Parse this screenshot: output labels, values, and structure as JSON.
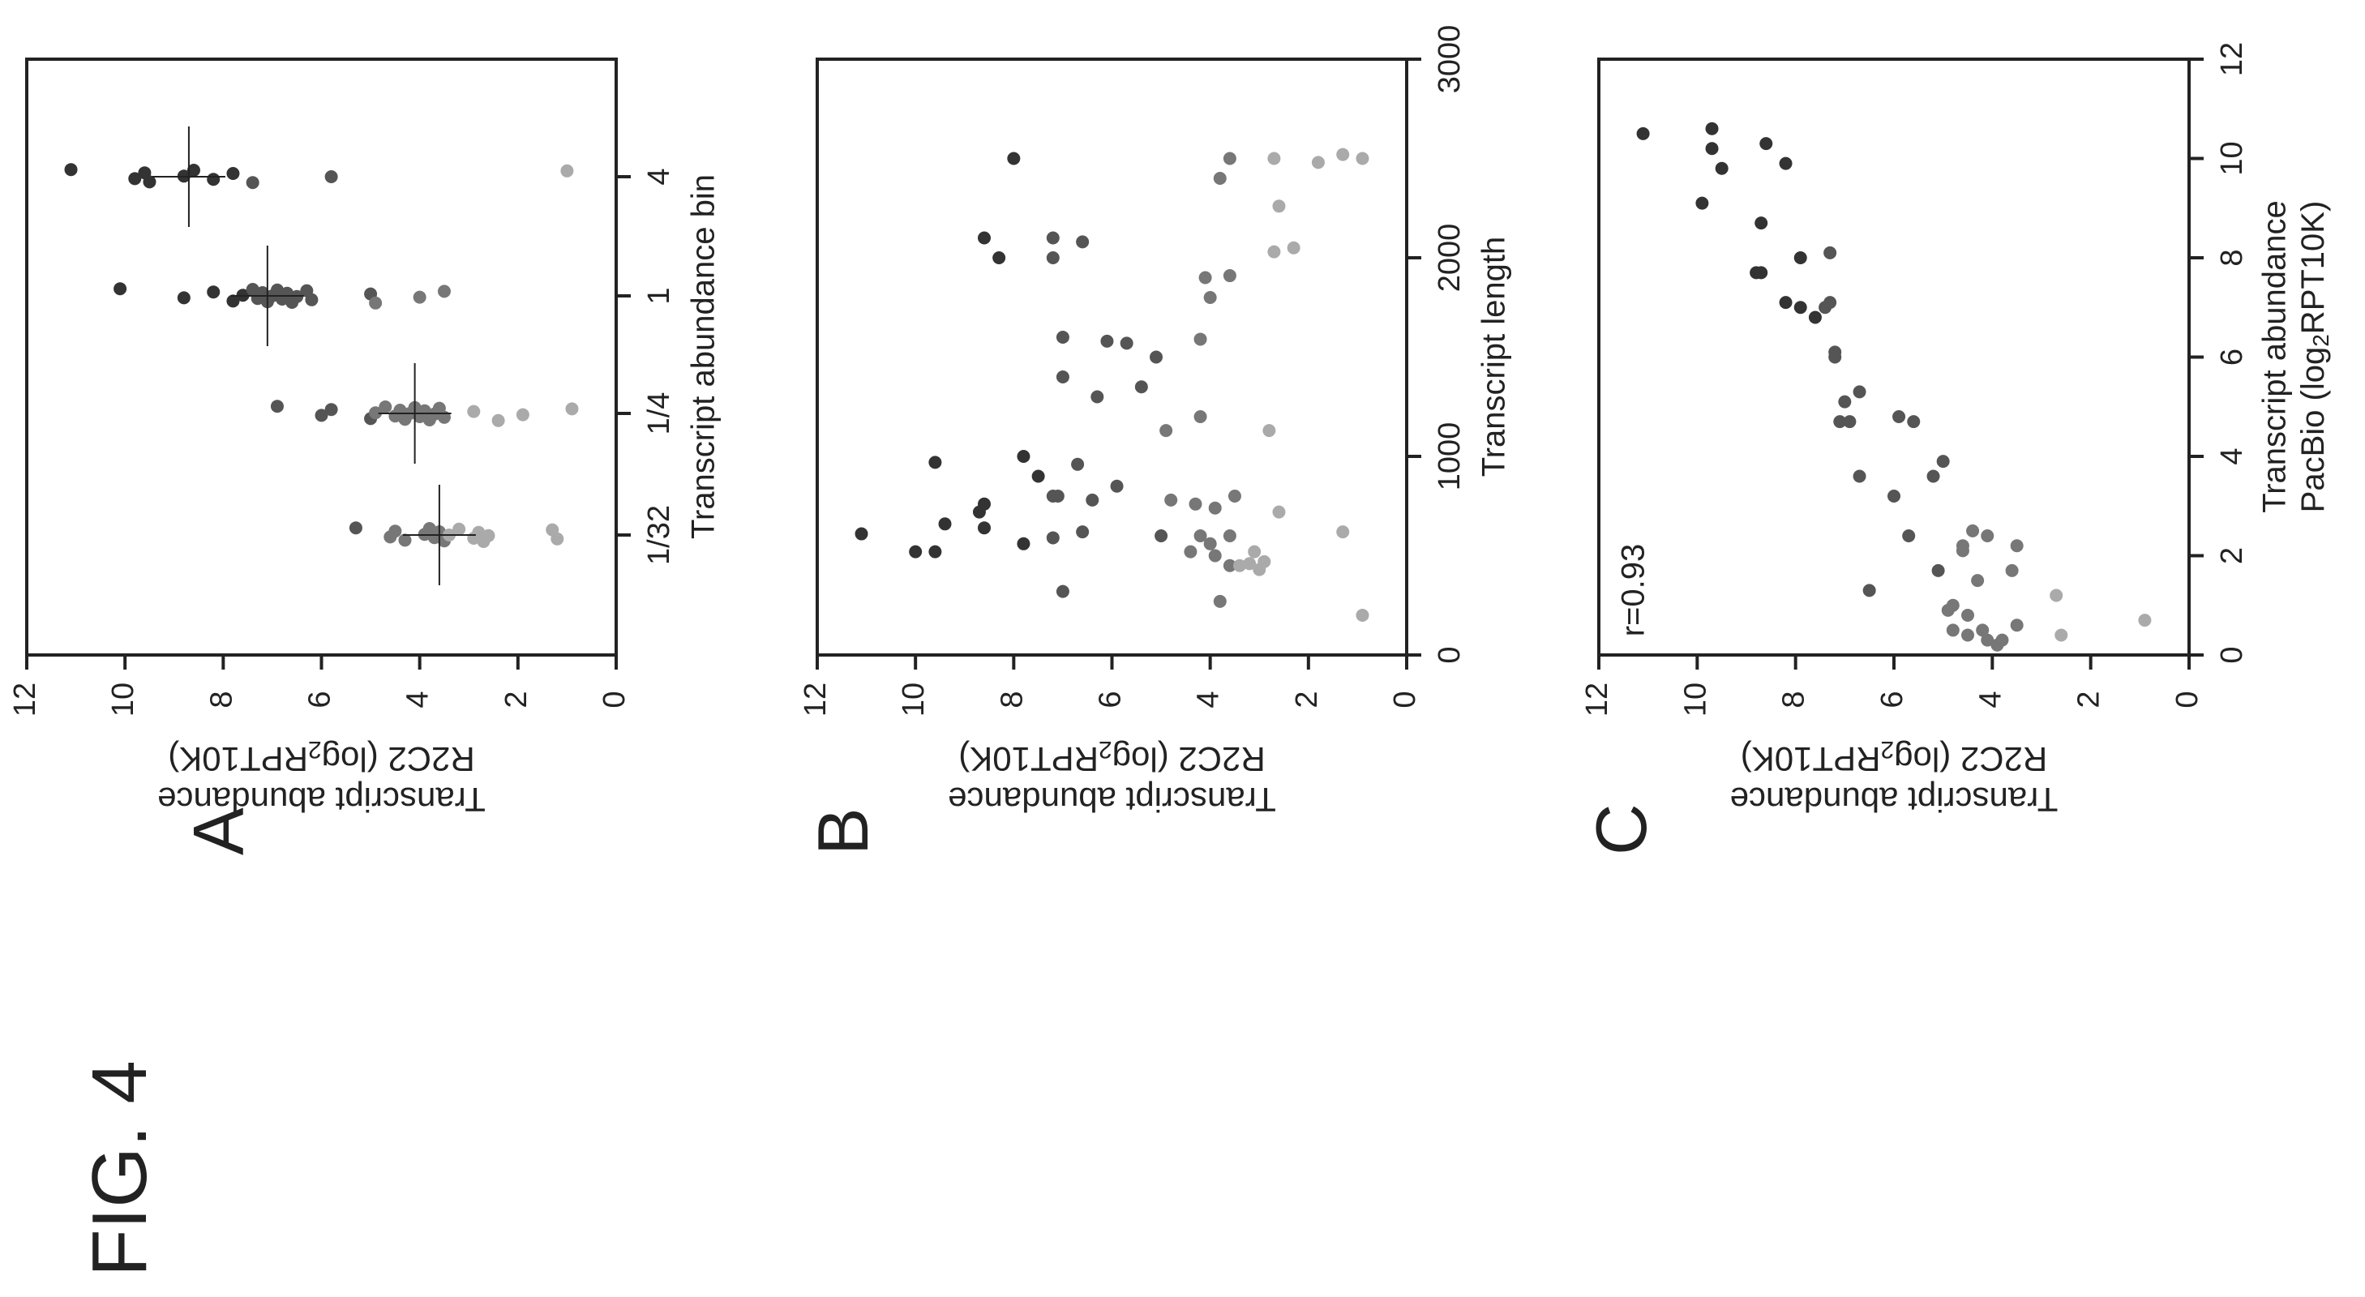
{
  "figure_label": "FIG. 4",
  "panel_labels": [
    "A",
    "B",
    "C"
  ],
  "ylabel_line1": "Transcript abundance",
  "ylabel_line2_prefix": "R2C2 (log",
  "ylabel_line2_sub": "2",
  "ylabel_line2_suffix": "RPT10K)",
  "colors": {
    "ink": "#222222",
    "dark": "#333333",
    "mid": "#777777",
    "light": "#aaaaaa"
  },
  "chart_data": [
    {
      "type": "scatter",
      "panel": "A",
      "title": "",
      "xlabel": "Transcript abundance bin",
      "ylabel": "Transcript abundance R2C2 (log2RPT10K)",
      "categories": [
        "1/32",
        "1/4",
        "1",
        "4"
      ],
      "ylim": [
        0,
        12
      ],
      "yticks": [
        0,
        2,
        4,
        6,
        8,
        10,
        12
      ],
      "medians": [
        3.6,
        4.1,
        7.1,
        8.7
      ],
      "series": [
        {
          "category": "1/32",
          "values": [
            5.3,
            4.6,
            4.5,
            4.3,
            3.9,
            3.8,
            3.7,
            3.6,
            3.5,
            3.4,
            3.2,
            2.9,
            2.8,
            2.7,
            2.6,
            1.3,
            1.2
          ]
        },
        {
          "category": "1/4",
          "values": [
            6.9,
            6.0,
            5.8,
            5.0,
            4.9,
            4.7,
            4.5,
            4.4,
            4.3,
            4.2,
            4.1,
            4.0,
            3.9,
            3.8,
            3.7,
            3.6,
            3.5,
            2.9,
            2.4,
            1.9,
            0.9
          ]
        },
        {
          "category": "1",
          "values": [
            10.1,
            8.8,
            8.2,
            7.8,
            7.6,
            7.4,
            7.3,
            7.2,
            7.1,
            7.0,
            6.9,
            6.8,
            6.7,
            6.6,
            6.5,
            6.3,
            6.2,
            5.0,
            4.9,
            4.0,
            3.5
          ]
        },
        {
          "category": "4",
          "values": [
            11.1,
            9.8,
            9.6,
            9.5,
            8.8,
            8.6,
            8.2,
            7.8,
            7.4,
            5.8,
            1.0
          ]
        }
      ]
    },
    {
      "type": "scatter",
      "panel": "B",
      "title": "",
      "xlabel": "Transcript length",
      "ylabel": "Transcript abundance R2C2 (log2RPT10K)",
      "xlim": [
        0,
        3000
      ],
      "ylim": [
        0,
        12
      ],
      "xticks": [
        0,
        1000,
        2000,
        3000
      ],
      "yticks": [
        0,
        2,
        4,
        6,
        8,
        10,
        12
      ],
      "points": [
        {
          "x": 610,
          "y": 11.1
        },
        {
          "x": 970,
          "y": 9.6
        },
        {
          "x": 520,
          "y": 10.0
        },
        {
          "x": 520,
          "y": 9.6
        },
        {
          "x": 660,
          "y": 9.4
        },
        {
          "x": 720,
          "y": 8.7
        },
        {
          "x": 760,
          "y": 8.6
        },
        {
          "x": 640,
          "y": 8.6
        },
        {
          "x": 560,
          "y": 7.8
        },
        {
          "x": 1000,
          "y": 7.8
        },
        {
          "x": 900,
          "y": 7.5
        },
        {
          "x": 800,
          "y": 7.2
        },
        {
          "x": 590,
          "y": 7.2
        },
        {
          "x": 320,
          "y": 7.0
        },
        {
          "x": 620,
          "y": 6.6
        },
        {
          "x": 960,
          "y": 6.7
        },
        {
          "x": 1600,
          "y": 7.0
        },
        {
          "x": 1400,
          "y": 7.0
        },
        {
          "x": 800,
          "y": 7.1
        },
        {
          "x": 1580,
          "y": 6.1
        },
        {
          "x": 1570,
          "y": 5.7
        },
        {
          "x": 1300,
          "y": 6.3
        },
        {
          "x": 850,
          "y": 5.9
        },
        {
          "x": 780,
          "y": 6.4
        },
        {
          "x": 1500,
          "y": 5.1
        },
        {
          "x": 1350,
          "y": 5.4
        },
        {
          "x": 1130,
          "y": 4.9
        },
        {
          "x": 600,
          "y": 5.0
        },
        {
          "x": 780,
          "y": 4.8
        },
        {
          "x": 760,
          "y": 4.3
        },
        {
          "x": 520,
          "y": 4.4
        },
        {
          "x": 600,
          "y": 4.2
        },
        {
          "x": 560,
          "y": 4.0
        },
        {
          "x": 500,
          "y": 3.9
        },
        {
          "x": 450,
          "y": 3.6
        },
        {
          "x": 600,
          "y": 3.6
        },
        {
          "x": 450,
          "y": 3.4
        },
        {
          "x": 460,
          "y": 3.2
        },
        {
          "x": 520,
          "y": 3.1
        },
        {
          "x": 430,
          "y": 3.0
        },
        {
          "x": 270,
          "y": 3.8
        },
        {
          "x": 1200,
          "y": 4.2
        },
        {
          "x": 740,
          "y": 3.9
        },
        {
          "x": 800,
          "y": 3.5
        },
        {
          "x": 470,
          "y": 2.9
        },
        {
          "x": 720,
          "y": 2.6
        },
        {
          "x": 2500,
          "y": 8.0
        },
        {
          "x": 2100,
          "y": 8.6
        },
        {
          "x": 2000,
          "y": 8.3
        },
        {
          "x": 2000,
          "y": 7.2
        },
        {
          "x": 2100,
          "y": 7.2
        },
        {
          "x": 2080,
          "y": 6.6
        },
        {
          "x": 1590,
          "y": 4.2
        },
        {
          "x": 1800,
          "y": 4.0
        },
        {
          "x": 1900,
          "y": 4.1
        },
        {
          "x": 1910,
          "y": 3.6
        },
        {
          "x": 2400,
          "y": 3.8
        },
        {
          "x": 2500,
          "y": 3.6
        },
        {
          "x": 2030,
          "y": 2.7
        },
        {
          "x": 2050,
          "y": 2.3
        },
        {
          "x": 2260,
          "y": 2.6
        },
        {
          "x": 2500,
          "y": 2.7
        },
        {
          "x": 2480,
          "y": 1.8
        },
        {
          "x": 2520,
          "y": 1.3
        },
        {
          "x": 2500,
          "y": 0.9
        },
        {
          "x": 1130,
          "y": 2.8
        },
        {
          "x": 620,
          "y": 1.3
        },
        {
          "x": 200,
          "y": 0.9
        }
      ]
    },
    {
      "type": "scatter",
      "panel": "C",
      "title": "",
      "xlabel": "Transcript abundance PacBio (log2RPT10K)",
      "ylabel": "Transcript abundance R2C2 (log2RPT10K)",
      "annotation": "r=0.93",
      "xlim": [
        0,
        12
      ],
      "ylim": [
        0,
        12
      ],
      "xticks": [
        0,
        2,
        4,
        6,
        8,
        10,
        12
      ],
      "yticks": [
        0,
        2,
        4,
        6,
        8,
        10,
        12
      ],
      "points": [
        {
          "x": 10.5,
          "y": 11.1
        },
        {
          "x": 10.6,
          "y": 9.7
        },
        {
          "x": 10.2,
          "y": 9.7
        },
        {
          "x": 9.8,
          "y": 9.5
        },
        {
          "x": 10.3,
          "y": 8.6
        },
        {
          "x": 9.1,
          "y": 9.9
        },
        {
          "x": 9.9,
          "y": 8.2
        },
        {
          "x": 8.7,
          "y": 8.7
        },
        {
          "x": 8.0,
          "y": 7.9
        },
        {
          "x": 8.1,
          "y": 7.3
        },
        {
          "x": 7.7,
          "y": 8.8
        },
        {
          "x": 7.7,
          "y": 8.7
        },
        {
          "x": 7.1,
          "y": 8.2
        },
        {
          "x": 7.0,
          "y": 7.9
        },
        {
          "x": 7.0,
          "y": 7.4
        },
        {
          "x": 6.8,
          "y": 7.6
        },
        {
          "x": 7.1,
          "y": 7.3
        },
        {
          "x": 6.1,
          "y": 7.2
        },
        {
          "x": 6.0,
          "y": 7.2
        },
        {
          "x": 5.3,
          "y": 6.7
        },
        {
          "x": 5.1,
          "y": 7.0
        },
        {
          "x": 4.8,
          "y": 5.9
        },
        {
          "x": 4.7,
          "y": 7.1
        },
        {
          "x": 4.7,
          "y": 6.9
        },
        {
          "x": 4.7,
          "y": 5.6
        },
        {
          "x": 3.9,
          "y": 5.0
        },
        {
          "x": 3.6,
          "y": 6.7
        },
        {
          "x": 3.2,
          "y": 6.0
        },
        {
          "x": 2.5,
          "y": 4.4
        },
        {
          "x": 2.4,
          "y": 5.7
        },
        {
          "x": 2.4,
          "y": 4.1
        },
        {
          "x": 2.2,
          "y": 3.5
        },
        {
          "x": 2.2,
          "y": 4.6
        },
        {
          "x": 1.7,
          "y": 5.1
        },
        {
          "x": 1.7,
          "y": 3.6
        },
        {
          "x": 1.3,
          "y": 6.5
        },
        {
          "x": 1.2,
          "y": 2.7
        },
        {
          "x": 1.0,
          "y": 4.8
        },
        {
          "x": 0.9,
          "y": 4.9
        },
        {
          "x": 0.8,
          "y": 4.5
        },
        {
          "x": 0.6,
          "y": 3.5
        },
        {
          "x": 0.5,
          "y": 4.2
        },
        {
          "x": 0.5,
          "y": 4.8
        },
        {
          "x": 0.4,
          "y": 4.5
        },
        {
          "x": 0.4,
          "y": 2.6
        },
        {
          "x": 0.3,
          "y": 4.1
        },
        {
          "x": 0.3,
          "y": 3.8
        },
        {
          "x": 0.2,
          "y": 3.9
        },
        {
          "x": 0.7,
          "y": 0.9
        },
        {
          "x": 2.1,
          "y": 4.6
        },
        {
          "x": 1.5,
          "y": 4.3
        },
        {
          "x": 3.6,
          "y": 5.2
        }
      ]
    }
  ]
}
